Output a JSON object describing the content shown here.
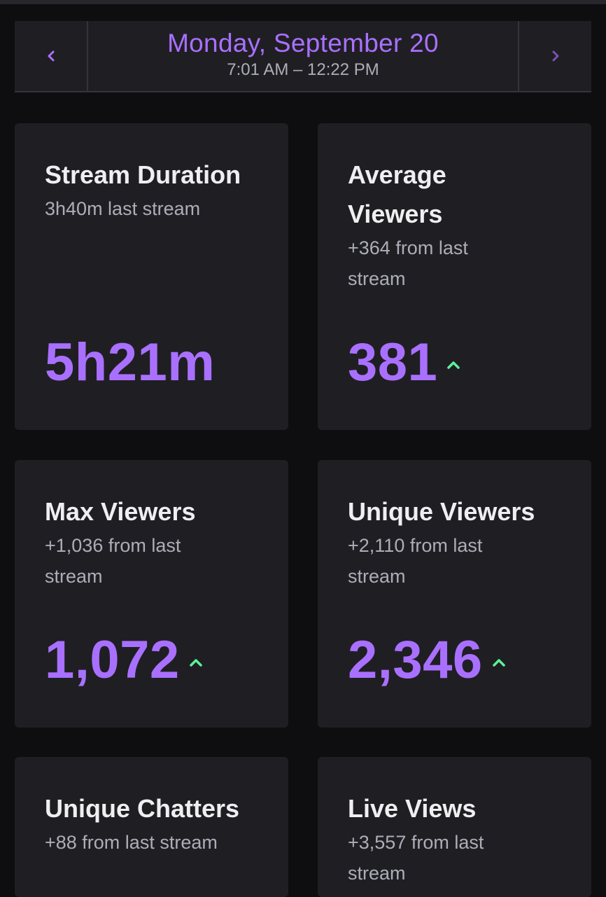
{
  "header": {
    "date": "Monday, September 20",
    "time_range": "7:01 AM – 12:22 PM",
    "prev_icon": "chevron-left-icon",
    "next_icon": "chevron-right-icon"
  },
  "colors": {
    "background": "#0e0e10",
    "card": "#1f1f23",
    "accent": "#a970ff",
    "trend_up": "#5cf29a",
    "title": "#efeff1",
    "subtitle": "#adadb8"
  },
  "stats": [
    {
      "title": "Stream Duration",
      "subtitle": "3h40m last stream",
      "value": "5h21m",
      "trend": "none"
    },
    {
      "title": "Average Viewers",
      "subtitle": "+364 from last stream",
      "value": "381",
      "trend": "up"
    },
    {
      "title": "Max Viewers",
      "subtitle": "+1,036 from last stream",
      "value": "1,072",
      "trend": "up"
    },
    {
      "title": "Unique Viewers",
      "subtitle": "+2,110 from last stream",
      "value": "2,346",
      "trend": "up"
    },
    {
      "title": "Unique Chatters",
      "subtitle": "+88 from last stream",
      "value": "",
      "trend": "up"
    },
    {
      "title": "Live Views",
      "subtitle": "+3,557 from last stream",
      "value": "",
      "trend": "up"
    }
  ]
}
